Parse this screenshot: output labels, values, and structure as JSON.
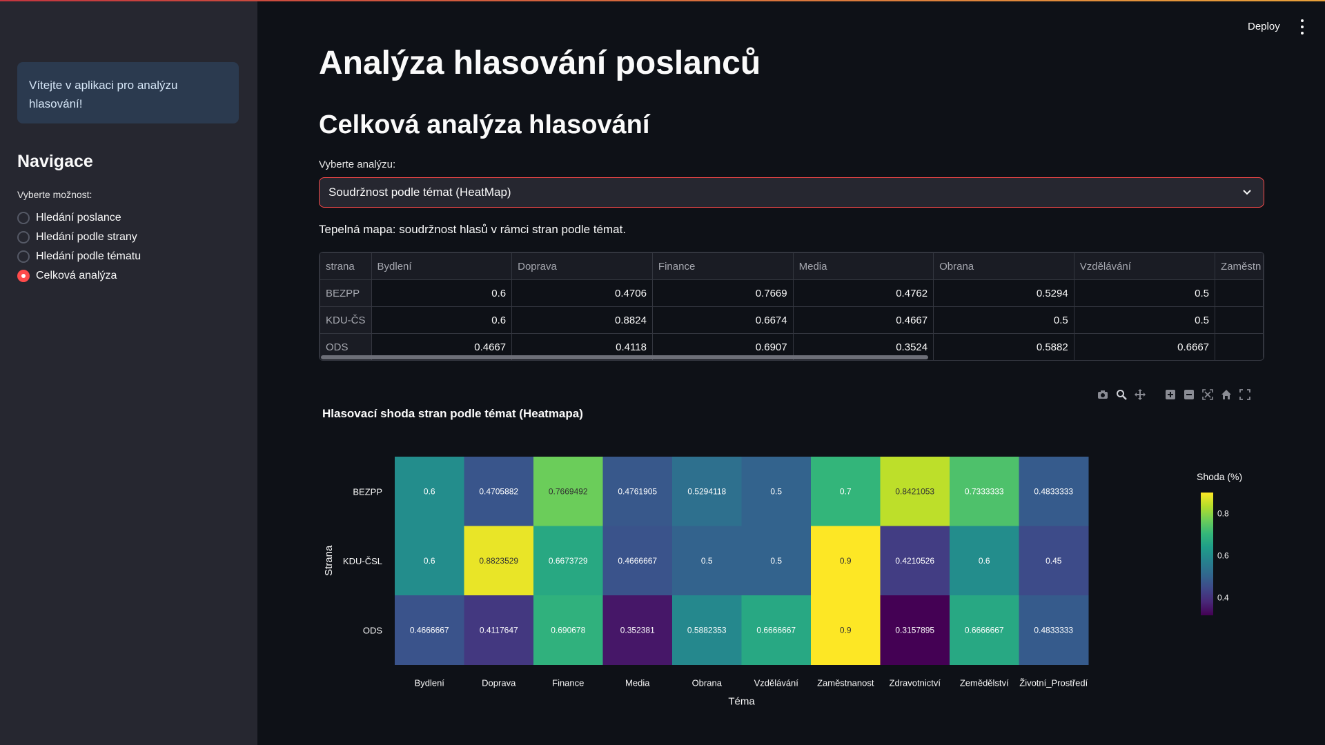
{
  "sidebar": {
    "welcome": "Vítejte v aplikaci pro analýzu hlasování!",
    "nav_title": "Navigace",
    "radio_label": "Vyberte možnost:",
    "options": [
      {
        "label": "Hledání poslance",
        "selected": false
      },
      {
        "label": "Hledání podle strany",
        "selected": false
      },
      {
        "label": "Hledání podle tématu",
        "selected": false
      },
      {
        "label": "Celková analýza",
        "selected": true
      }
    ]
  },
  "header": {
    "deploy": "Deploy",
    "menu_icon": "kebab-menu-icon"
  },
  "main": {
    "title": "Analýza hlasování poslanců",
    "subtitle": "Celková analýza hlasování",
    "select_label": "Vyberte analýzu:",
    "select_value": "Soudržnost podle témat (HeatMap)",
    "caption": "Tepelná mapa: soudržnost hlasů v rámci stran podle témat."
  },
  "table": {
    "columns": [
      "strana",
      "Bydlení",
      "Doprava",
      "Finance",
      "Media",
      "Obrana",
      "Vzdělávání",
      "Zaměstn"
    ],
    "rows": [
      {
        "index": "BEZPP",
        "values": [
          "0.6",
          "0.4706",
          "0.7669",
          "0.4762",
          "0.5294",
          "0.5",
          ""
        ]
      },
      {
        "index": "KDU-ČS",
        "values": [
          "0.6",
          "0.8824",
          "0.6674",
          "0.4667",
          "0.5",
          "0.5",
          ""
        ]
      },
      {
        "index": "ODS",
        "values": [
          "0.4667",
          "0.4118",
          "0.6907",
          "0.3524",
          "0.5882",
          "0.6667",
          ""
        ]
      }
    ]
  },
  "modebar_icons": [
    "camera-icon",
    "zoom-icon",
    "pan-icon",
    "zoom-in-icon",
    "zoom-out-icon",
    "autoscale-icon",
    "home-icon",
    "fullscreen-icon"
  ],
  "chart_data": {
    "type": "heatmap",
    "title": "Hlasovací shoda stran podle témat (Heatmapa)",
    "xlabel": "Téma",
    "ylabel": "Strana",
    "colorbar_title": "Shoda (%)",
    "colorbar_ticks": [
      0.8,
      0.6,
      0.4
    ],
    "colorscale": "viridis",
    "zmin": 0.3157895,
    "zmax": 0.9,
    "x": [
      "Bydlení",
      "Doprava",
      "Finance",
      "Media",
      "Obrana",
      "Vzdělávání",
      "Zaměstnanost",
      "Zdravotnictví",
      "Zemědělství",
      "Životní_Prostředí"
    ],
    "y": [
      "BEZPP",
      "KDU-ČSL",
      "ODS"
    ],
    "z": [
      [
        0.6,
        0.4705882,
        0.7669492,
        0.4761905,
        0.5294118,
        0.5,
        0.7,
        0.8421053,
        0.7333333,
        0.4833333
      ],
      [
        0.6,
        0.8823529,
        0.6673729,
        0.4666667,
        0.5,
        0.5,
        0.9,
        0.4210526,
        0.6,
        0.45
      ],
      [
        0.4666667,
        0.4117647,
        0.690678,
        0.352381,
        0.5882353,
        0.6666667,
        0.9,
        0.3157895,
        0.6666667,
        0.4833333
      ]
    ]
  }
}
